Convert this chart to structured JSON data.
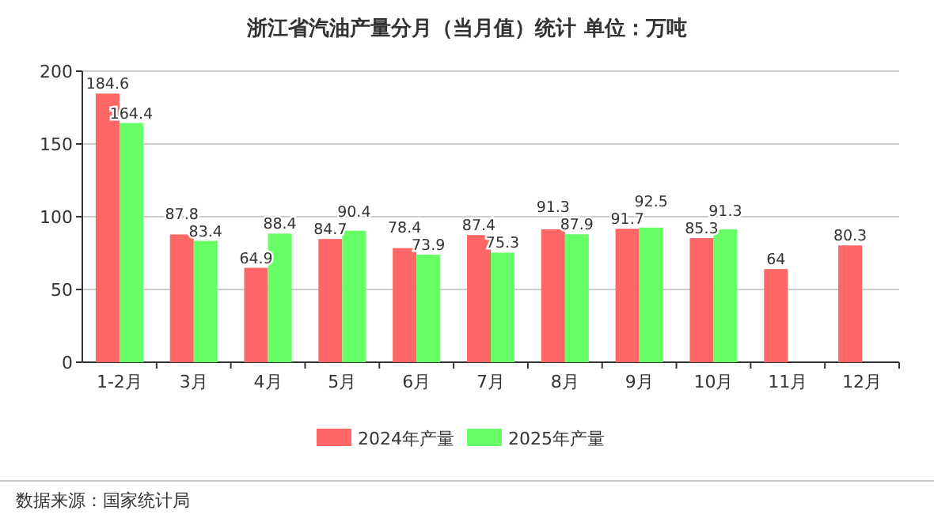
{
  "chart_data": {
    "type": "bar",
    "title": "浙江省汽油产量分月（当月值）统计  单位：万吨",
    "categories": [
      "1-2月",
      "3月",
      "4月",
      "5月",
      "6月",
      "7月",
      "8月",
      "9月",
      "10月",
      "11月",
      "12月"
    ],
    "series": [
      {
        "name": "2024年产量",
        "color": "#ff6666",
        "values": [
          184.6,
          87.8,
          64.9,
          84.7,
          78.4,
          87.4,
          91.3,
          91.7,
          85.3,
          64,
          80.3
        ]
      },
      {
        "name": "2025年产量",
        "color": "#66ff66",
        "values": [
          164.4,
          83.4,
          88.4,
          90.4,
          73.9,
          75.3,
          87.9,
          92.5,
          91.3,
          null,
          null
        ]
      }
    ],
    "ylim": [
      0,
      200
    ],
    "yticks": [
      0,
      50,
      100,
      150,
      200
    ],
    "grid": "y",
    "legend": "bottom",
    "data_labels": true,
    "annotations": [
      "数据来源：国家统计局"
    ]
  }
}
